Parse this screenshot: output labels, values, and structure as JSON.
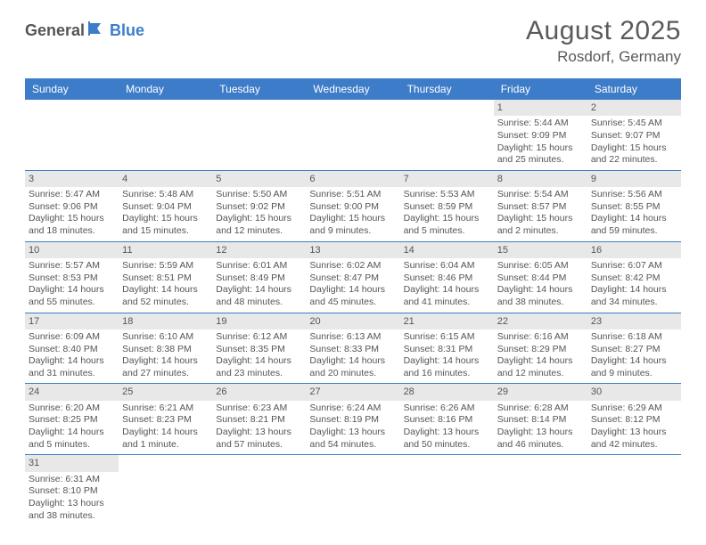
{
  "logo": {
    "part1": "General",
    "part2": "Blue"
  },
  "title": "August 2025",
  "location": "Rosdorf, Germany",
  "dayNames": [
    "Sunday",
    "Monday",
    "Tuesday",
    "Wednesday",
    "Thursday",
    "Friday",
    "Saturday"
  ],
  "colors": {
    "headerBar": "#3d7cc9",
    "dayNumBg": "#e8e8e8",
    "text": "#555555",
    "logoBlue": "#3d7cc9"
  },
  "weeks": [
    [
      null,
      null,
      null,
      null,
      null,
      {
        "n": "1",
        "sr": "5:44 AM",
        "ss": "9:09 PM",
        "dl": "15 hours and 25 minutes."
      },
      {
        "n": "2",
        "sr": "5:45 AM",
        "ss": "9:07 PM",
        "dl": "15 hours and 22 minutes."
      }
    ],
    [
      {
        "n": "3",
        "sr": "5:47 AM",
        "ss": "9:06 PM",
        "dl": "15 hours and 18 minutes."
      },
      {
        "n": "4",
        "sr": "5:48 AM",
        "ss": "9:04 PM",
        "dl": "15 hours and 15 minutes."
      },
      {
        "n": "5",
        "sr": "5:50 AM",
        "ss": "9:02 PM",
        "dl": "15 hours and 12 minutes."
      },
      {
        "n": "6",
        "sr": "5:51 AM",
        "ss": "9:00 PM",
        "dl": "15 hours and 9 minutes."
      },
      {
        "n": "7",
        "sr": "5:53 AM",
        "ss": "8:59 PM",
        "dl": "15 hours and 5 minutes."
      },
      {
        "n": "8",
        "sr": "5:54 AM",
        "ss": "8:57 PM",
        "dl": "15 hours and 2 minutes."
      },
      {
        "n": "9",
        "sr": "5:56 AM",
        "ss": "8:55 PM",
        "dl": "14 hours and 59 minutes."
      }
    ],
    [
      {
        "n": "10",
        "sr": "5:57 AM",
        "ss": "8:53 PM",
        "dl": "14 hours and 55 minutes."
      },
      {
        "n": "11",
        "sr": "5:59 AM",
        "ss": "8:51 PM",
        "dl": "14 hours and 52 minutes."
      },
      {
        "n": "12",
        "sr": "6:01 AM",
        "ss": "8:49 PM",
        "dl": "14 hours and 48 minutes."
      },
      {
        "n": "13",
        "sr": "6:02 AM",
        "ss": "8:47 PM",
        "dl": "14 hours and 45 minutes."
      },
      {
        "n": "14",
        "sr": "6:04 AM",
        "ss": "8:46 PM",
        "dl": "14 hours and 41 minutes."
      },
      {
        "n": "15",
        "sr": "6:05 AM",
        "ss": "8:44 PM",
        "dl": "14 hours and 38 minutes."
      },
      {
        "n": "16",
        "sr": "6:07 AM",
        "ss": "8:42 PM",
        "dl": "14 hours and 34 minutes."
      }
    ],
    [
      {
        "n": "17",
        "sr": "6:09 AM",
        "ss": "8:40 PM",
        "dl": "14 hours and 31 minutes."
      },
      {
        "n": "18",
        "sr": "6:10 AM",
        "ss": "8:38 PM",
        "dl": "14 hours and 27 minutes."
      },
      {
        "n": "19",
        "sr": "6:12 AM",
        "ss": "8:35 PM",
        "dl": "14 hours and 23 minutes."
      },
      {
        "n": "20",
        "sr": "6:13 AM",
        "ss": "8:33 PM",
        "dl": "14 hours and 20 minutes."
      },
      {
        "n": "21",
        "sr": "6:15 AM",
        "ss": "8:31 PM",
        "dl": "14 hours and 16 minutes."
      },
      {
        "n": "22",
        "sr": "6:16 AM",
        "ss": "8:29 PM",
        "dl": "14 hours and 12 minutes."
      },
      {
        "n": "23",
        "sr": "6:18 AM",
        "ss": "8:27 PM",
        "dl": "14 hours and 9 minutes."
      }
    ],
    [
      {
        "n": "24",
        "sr": "6:20 AM",
        "ss": "8:25 PM",
        "dl": "14 hours and 5 minutes."
      },
      {
        "n": "25",
        "sr": "6:21 AM",
        "ss": "8:23 PM",
        "dl": "14 hours and 1 minute."
      },
      {
        "n": "26",
        "sr": "6:23 AM",
        "ss": "8:21 PM",
        "dl": "13 hours and 57 minutes."
      },
      {
        "n": "27",
        "sr": "6:24 AM",
        "ss": "8:19 PM",
        "dl": "13 hours and 54 minutes."
      },
      {
        "n": "28",
        "sr": "6:26 AM",
        "ss": "8:16 PM",
        "dl": "13 hours and 50 minutes."
      },
      {
        "n": "29",
        "sr": "6:28 AM",
        "ss": "8:14 PM",
        "dl": "13 hours and 46 minutes."
      },
      {
        "n": "30",
        "sr": "6:29 AM",
        "ss": "8:12 PM",
        "dl": "13 hours and 42 minutes."
      }
    ],
    [
      {
        "n": "31",
        "sr": "6:31 AM",
        "ss": "8:10 PM",
        "dl": "13 hours and 38 minutes."
      },
      null,
      null,
      null,
      null,
      null,
      null
    ]
  ],
  "labels": {
    "sunrise": "Sunrise:",
    "sunset": "Sunset:",
    "daylight": "Daylight:"
  }
}
